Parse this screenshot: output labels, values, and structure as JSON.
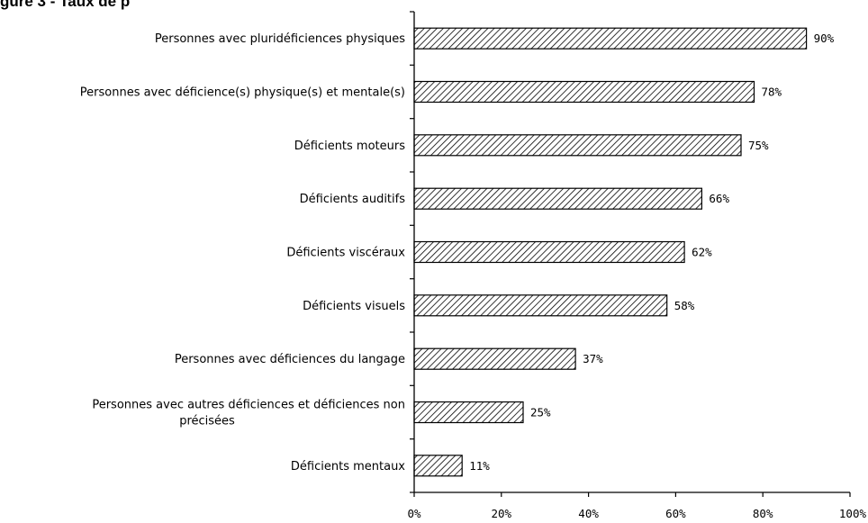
{
  "title": "gure 3 - Taux de p",
  "chart_data": {
    "type": "bar",
    "orientation": "horizontal",
    "categories": [
      "Personnes avec pluridéficiences physiques",
      "Personnes avec déficience(s) physique(s) et mentale(s)",
      "Déficients moteurs",
      "Déficients auditifs",
      "Déficients viscéraux",
      "Déficients visuels",
      "Personnes avec déficiences du langage",
      "Personnes avec autres déficiences et déficiences non précisées",
      "Déficients mentaux"
    ],
    "category_lines": [
      [
        "Personnes avec pluridéficiences physiques"
      ],
      [
        "Personnes avec déficience(s) physique(s) et mentale(s)"
      ],
      [
        "Déficients moteurs"
      ],
      [
        "Déficients auditifs"
      ],
      [
        "Déficients viscéraux"
      ],
      [
        "Déficients visuels"
      ],
      [
        "Personnes avec déficiences du langage"
      ],
      [
        "Personnes avec autres déficiences et déficiences non",
        "précisées"
      ],
      [
        "Déficients mentaux"
      ]
    ],
    "values": [
      90,
      78,
      75,
      66,
      62,
      58,
      37,
      25,
      11
    ],
    "value_labels": [
      "90%",
      "78%",
      "75%",
      "66%",
      "62%",
      "58%",
      "37%",
      "25%",
      "11%"
    ],
    "xlim": [
      0,
      100
    ],
    "xticks": [
      0,
      20,
      40,
      60,
      80,
      100
    ],
    "xtick_labels": [
      "0%",
      "20%",
      "40%",
      "60%",
      "80%",
      "100%"
    ],
    "grid": false,
    "bar_fill": "diagonal-hatch",
    "colors": {
      "bar_stroke": "#000000",
      "hatch": "#000000",
      "background": "#ffffff"
    }
  }
}
